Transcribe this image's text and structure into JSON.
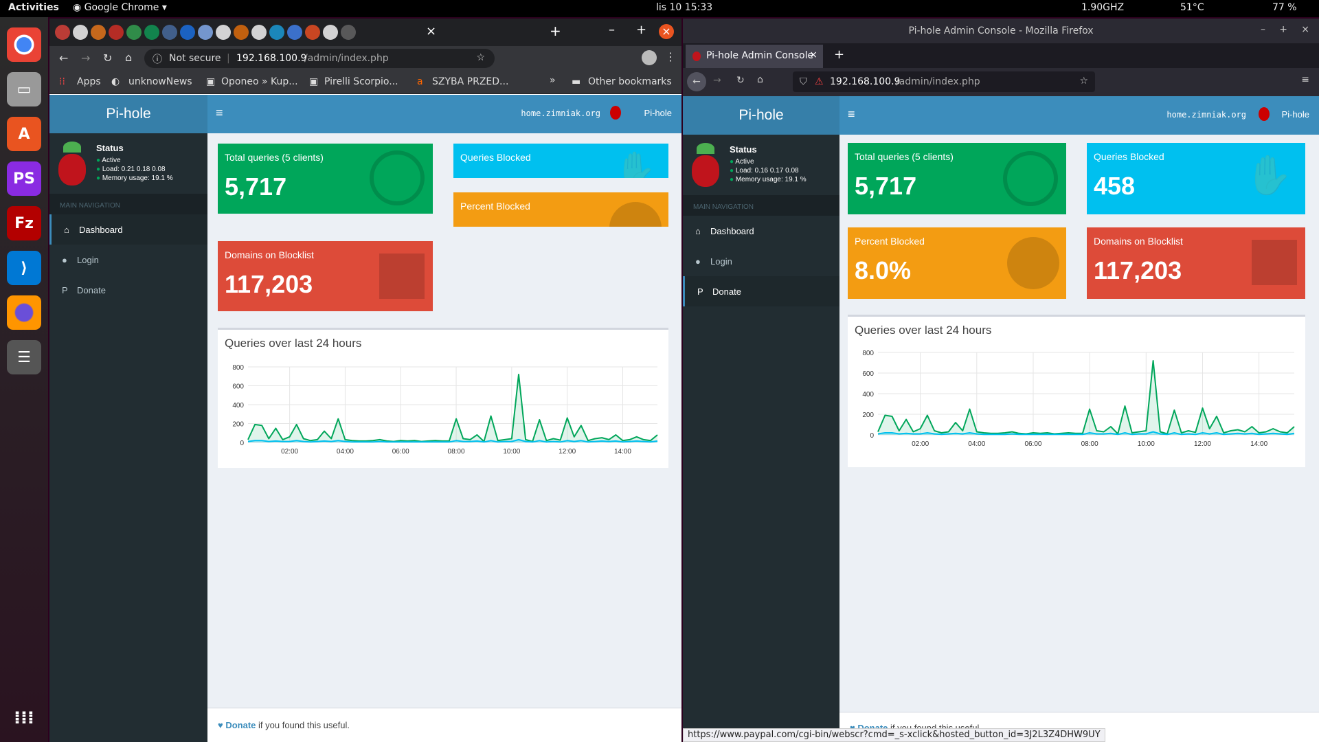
{
  "system": {
    "activities": "Activities",
    "app_menu": "Google Chrome",
    "clock": "lis 10  15:33",
    "cpu": "1.90GHZ",
    "temp": "51°C",
    "battery": "77 %"
  },
  "chrome": {
    "address_security": "Not secure",
    "address_host": "192.168.100.9",
    "address_path": "/admin/index.php",
    "bookmarks": [
      "Apps",
      "unknowNews",
      "Oponeo » Kup...",
      "Pirelli Scorpio...",
      "SZYBA PRZED..."
    ],
    "other_bookmarks": "Other bookmarks"
  },
  "firefox": {
    "window_title": "Pi-hole Admin Console - Mozilla Firefox",
    "tab_title": "Pi-hole Admin Console",
    "address_host": "192.168.100.9",
    "address_path": "/admin/index.php",
    "status_url": "https://www.paypal.com/cgi-bin/webscr?cmd=_s-xclick&hosted_button_id=3J2L3Z4DHW9UY"
  },
  "pihole_left": {
    "logo": "Pi-hole",
    "hostname": "home.zimniak.org",
    "user": "Pi-hole",
    "status_title": "Status",
    "status_active": "Active",
    "load": "Load:  0.21  0.18  0.08",
    "memory": "Memory usage:  19.1 %",
    "nav_header": "MAIN NAVIGATION",
    "nav": [
      "Dashboard",
      "Login",
      "Donate"
    ],
    "total_label": "Total queries (5 clients)",
    "total_value": "5,717",
    "blocked_label": "Queries Blocked",
    "percent_label": "Percent Blocked",
    "domains_label": "Domains on Blocklist",
    "domains_value": "117,203",
    "chart_title": "Queries over last 24 hours",
    "footer_link": "Donate",
    "footer_text": " if you found this useful."
  },
  "pihole_right": {
    "logo": "Pi-hole",
    "hostname": "home.zimniak.org",
    "user": "Pi-hole",
    "status_title": "Status",
    "status_active": "Active",
    "load": "Load:  0.16  0.17  0.08",
    "memory": "Memory usage:  19.1 %",
    "nav_header": "MAIN NAVIGATION",
    "nav": [
      "Dashboard",
      "Login",
      "Donate"
    ],
    "total_label": "Total queries (5 clients)",
    "total_value": "5,717",
    "blocked_label": "Queries Blocked",
    "blocked_value": "458",
    "percent_label": "Percent Blocked",
    "percent_value": "8.0%",
    "domains_label": "Domains on Blocklist",
    "domains_value": "117,203",
    "chart_title": "Queries over last 24 hours",
    "footer_link": "Donate",
    "footer_text": " if you found this useful."
  },
  "colors": {
    "green": "#00a65a",
    "aqua": "#00c0ef",
    "orange": "#f39c12",
    "red": "#dd4b39",
    "header": "#3c8dbc",
    "sidebar": "#222d32"
  },
  "chart_data": {
    "type": "line",
    "title": "Queries over last 24 hours",
    "ylim": [
      0,
      800
    ],
    "yticks": [
      0,
      200,
      400,
      600,
      800
    ],
    "xticks": [
      "02:00",
      "04:00",
      "06:00",
      "08:00",
      "10:00",
      "12:00",
      "14:00"
    ],
    "x_hours": [
      0.5,
      0.75,
      1,
      1.25,
      1.5,
      1.75,
      2,
      2.25,
      2.5,
      2.75,
      3,
      3.25,
      3.5,
      3.75,
      4,
      4.25,
      4.5,
      4.75,
      5,
      5.25,
      5.5,
      5.75,
      6,
      6.25,
      6.5,
      6.75,
      7,
      7.25,
      7.5,
      7.75,
      8,
      8.25,
      8.5,
      8.75,
      9,
      9.25,
      9.5,
      9.75,
      10,
      10.25,
      10.5,
      10.75,
      11,
      11.25,
      11.5,
      11.75,
      12,
      12.25,
      12.5,
      12.75,
      13,
      13.25,
      13.5,
      13.75,
      14,
      14.25,
      14.5,
      14.75,
      15,
      15.25
    ],
    "series": [
      {
        "name": "Total queries",
        "color": "#00a65a",
        "values": [
          30,
          190,
          180,
          40,
          150,
          30,
          60,
          190,
          40,
          20,
          30,
          120,
          40,
          250,
          30,
          20,
          15,
          15,
          20,
          30,
          15,
          10,
          20,
          15,
          20,
          10,
          15,
          20,
          15,
          15,
          250,
          40,
          30,
          80,
          10,
          280,
          20,
          30,
          40,
          720,
          30,
          10,
          240,
          20,
          40,
          25,
          260,
          60,
          180,
          20,
          40,
          50,
          30,
          80,
          20,
          30,
          60,
          30,
          20,
          80
        ]
      },
      {
        "name": "Blocked queries",
        "color": "#00c0ef",
        "values": [
          10,
          20,
          20,
          10,
          15,
          10,
          10,
          20,
          10,
          5,
          10,
          15,
          10,
          20,
          10,
          5,
          5,
          5,
          5,
          10,
          5,
          5,
          5,
          5,
          5,
          5,
          5,
          5,
          5,
          5,
          20,
          10,
          10,
          15,
          5,
          20,
          5,
          10,
          10,
          30,
          10,
          5,
          20,
          5,
          10,
          5,
          20,
          10,
          20,
          5,
          10,
          15,
          10,
          15,
          5,
          10,
          15,
          10,
          5,
          15
        ]
      }
    ]
  }
}
